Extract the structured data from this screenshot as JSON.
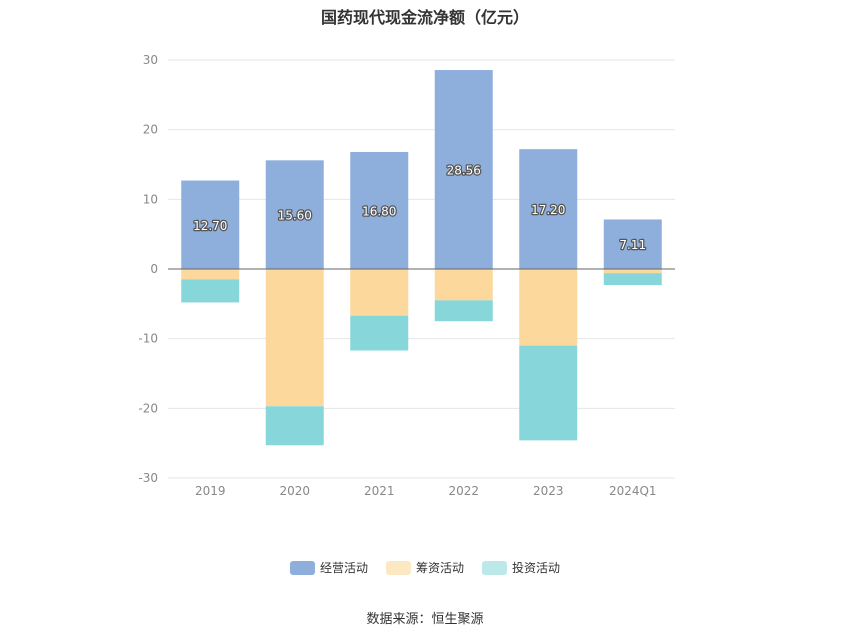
{
  "chart_data": {
    "type": "bar",
    "stacked": true,
    "title": "国药现代现金流净额（亿元）",
    "categories": [
      "2019",
      "2020",
      "2021",
      "2022",
      "2023",
      "2024Q1"
    ],
    "series": [
      {
        "name": "经营活动",
        "color": "#8eaedb",
        "values": [
          12.7,
          15.6,
          16.8,
          28.56,
          17.2,
          7.11
        ],
        "show_labels": true
      },
      {
        "name": "筹资活动",
        "color": "#fdd89c",
        "values": [
          -1.5,
          -19.7,
          -6.7,
          -4.5,
          -11.0,
          -0.6
        ],
        "show_labels": false
      },
      {
        "name": "投资活动",
        "color": "#87d6da",
        "values": [
          -3.3,
          -5.6,
          -5.0,
          -3.0,
          -13.6,
          -1.7
        ],
        "show_labels": false
      }
    ],
    "ylim": [
      -30,
      30
    ],
    "yticks": [
      30,
      20,
      10,
      0,
      -10,
      -20,
      -30
    ],
    "grid": true,
    "legend_position": "bottom",
    "legend_colors": [
      "#8eaedb",
      "#fde8c4",
      "#bde8ea"
    ]
  },
  "source": "数据来源：恒生聚源"
}
